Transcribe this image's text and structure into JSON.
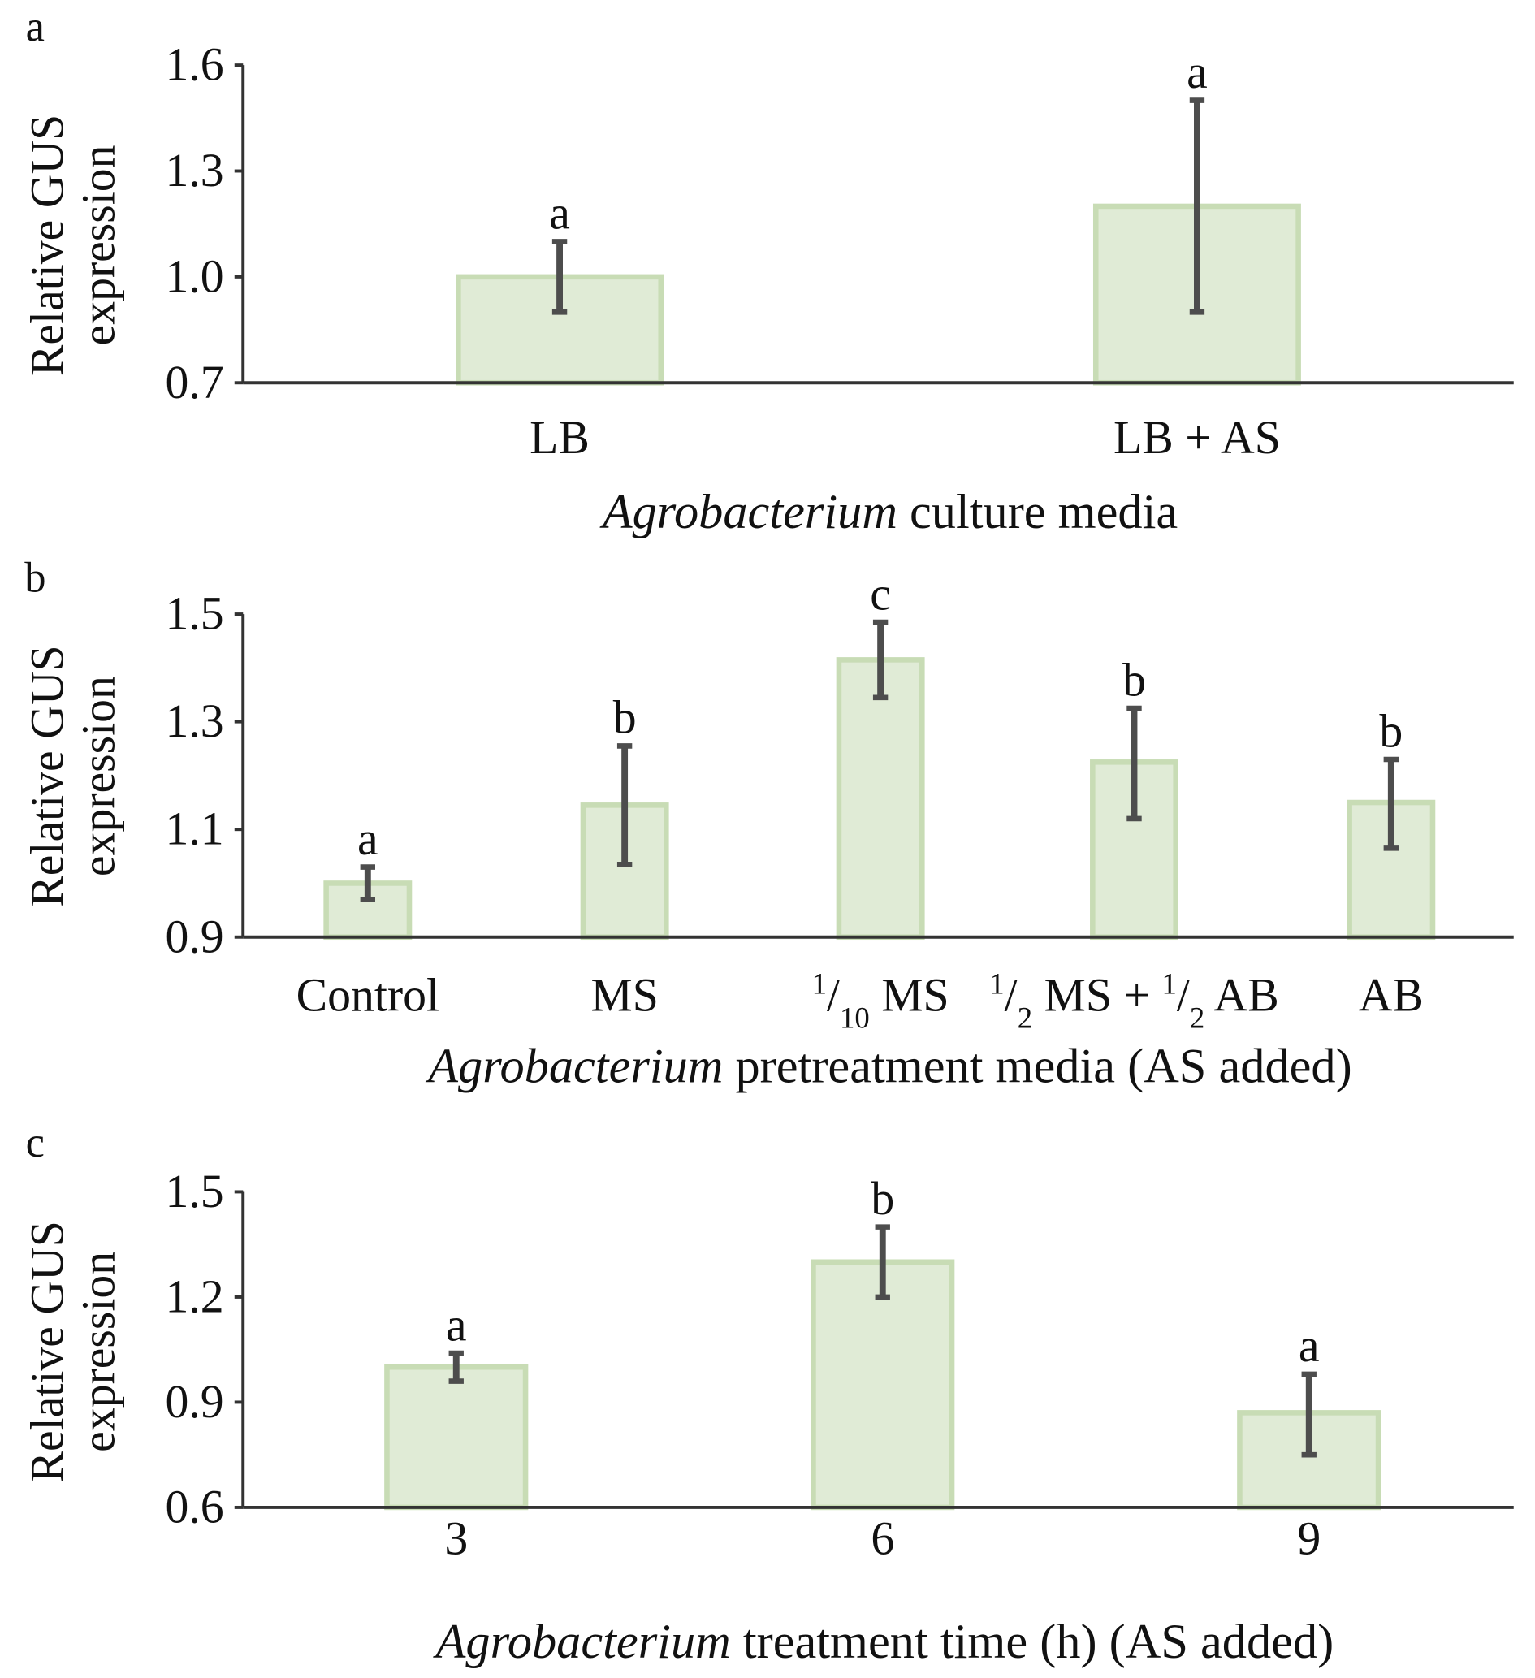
{
  "colors": {
    "bar_fill": "#e0ebd6",
    "bar_stroke": "#c8dcb5",
    "error_bar": "#4d4d4d",
    "axis": "#333333"
  },
  "chart_data": [
    {
      "type": "bar",
      "panel_label": "a",
      "ylabel": [
        "Relative GUS",
        "expression"
      ],
      "xlabel_italic": "Agrobacterium",
      "xlabel_rest": " culture media",
      "ylim": [
        0.7,
        1.6
      ],
      "yticks": [
        0.7,
        1.0,
        1.3,
        1.6
      ],
      "ytick_labels": [
        "0.7",
        "1.0",
        "1.3",
        "1.6"
      ],
      "categories": [
        [
          {
            "t": "LB"
          }
        ],
        [
          {
            "t": "LB + AS"
          }
        ]
      ],
      "values": [
        1.0,
        1.2
      ],
      "error_low": [
        0.9,
        0.9
      ],
      "error_high": [
        1.1,
        1.5
      ],
      "significance": [
        "a",
        "a"
      ]
    },
    {
      "type": "bar",
      "panel_label": "b",
      "ylabel": [
        "Relative GUS",
        "expression"
      ],
      "xlabel_italic": "Agrobacterium",
      "xlabel_rest": " pretreatment media (AS added)",
      "ylim": [
        0.9,
        1.5
      ],
      "yticks": [
        0.9,
        1.1,
        1.3,
        1.5
      ],
      "ytick_labels": [
        "0.9",
        "1.1",
        "1.3",
        "1.5"
      ],
      "categories": [
        [
          {
            "t": "Control"
          }
        ],
        [
          {
            "t": "MS"
          }
        ],
        [
          {
            "t": "1",
            "s": "sup"
          },
          {
            "t": "/"
          },
          {
            "t": "10",
            "s": "sub"
          },
          {
            "t": " MS"
          }
        ],
        [
          {
            "t": "1",
            "s": "sup"
          },
          {
            "t": "/"
          },
          {
            "t": "2",
            "s": "sub"
          },
          {
            "t": " MS + "
          },
          {
            "t": "1",
            "s": "sup"
          },
          {
            "t": "/"
          },
          {
            "t": "2",
            "s": "sub"
          },
          {
            "t": " AB"
          }
        ],
        [
          {
            "t": "AB"
          }
        ]
      ],
      "values": [
        1.0,
        1.145,
        1.415,
        1.225,
        1.15
      ],
      "error_low": [
        0.97,
        1.035,
        1.345,
        1.12,
        1.065
      ],
      "error_high": [
        1.03,
        1.255,
        1.485,
        1.325,
        1.23
      ],
      "significance": [
        "a",
        "b",
        "c",
        "b",
        "b"
      ]
    },
    {
      "type": "bar",
      "panel_label": "c",
      "ylabel": [
        "Relative GUS",
        "expression"
      ],
      "xlabel_italic": "Agrobacterium",
      "xlabel_rest": " treatment time (h) (AS added)",
      "ylim": [
        0.6,
        1.5
      ],
      "yticks": [
        0.6,
        0.9,
        1.2,
        1.5
      ],
      "ytick_labels": [
        "0.6",
        "0.9",
        "1.2",
        "1.5"
      ],
      "categories": [
        [
          {
            "t": "3"
          }
        ],
        [
          {
            "t": "6"
          }
        ],
        [
          {
            "t": "9"
          }
        ]
      ],
      "values": [
        1.0,
        1.3,
        0.87
      ],
      "error_low": [
        0.96,
        1.2,
        0.75
      ],
      "error_high": [
        1.04,
        1.4,
        0.98
      ],
      "significance": [
        "a",
        "b",
        "a"
      ]
    }
  ]
}
